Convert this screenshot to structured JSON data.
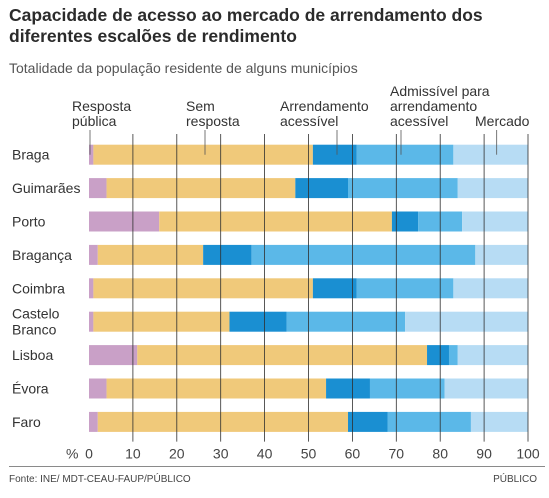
{
  "title": "Capacidade de acesso ao mercado de arrendamento dos diferentes escalões de rendimento",
  "subtitle": "Totalidade da população residente de alguns municípios",
  "footer": {
    "source": "Fonte: INE/ MDT-CEAU-FAUP/PÚBLICO",
    "publisher": "PÚBLICO"
  },
  "chart_data": {
    "type": "bar",
    "orientation": "horizontal",
    "stacked": true,
    "title": "Capacidade de acesso ao mercado de arrendamento dos diferentes escalões de rendimento",
    "subtitle": "Totalidade da população residente de alguns municípios",
    "xlabel": "%",
    "xlim": [
      0,
      100
    ],
    "x_ticks": [
      0,
      10,
      20,
      30,
      40,
      50,
      60,
      70,
      80,
      90,
      100
    ],
    "grid": true,
    "categories": [
      "Braga",
      "Guimarães",
      "Porto",
      "Bragança",
      "Coimbra",
      "Castelo Branco",
      "Lisboa",
      "Évora",
      "Faro"
    ],
    "category_lines": [
      [
        "Braga"
      ],
      [
        "Guimarães"
      ],
      [
        "Porto"
      ],
      [
        "Bragança"
      ],
      [
        "Coimbra"
      ],
      [
        "Castelo",
        "Branco"
      ],
      [
        "Lisboa"
      ],
      [
        "Évora"
      ],
      [
        "Faro"
      ]
    ],
    "series": [
      {
        "name": "Resposta pública",
        "name_lines": [
          "Resposta",
          "pública"
        ],
        "color": "#c9a0c7",
        "values": [
          1,
          4,
          16,
          2,
          1,
          1,
          11,
          4,
          2
        ]
      },
      {
        "name": "Sem resposta",
        "name_lines": [
          "Sem",
          "resposta"
        ],
        "color": "#f0c97a",
        "values": [
          50,
          43,
          53,
          24,
          50,
          31,
          66,
          50,
          57
        ]
      },
      {
        "name": "Arrendamento acessível",
        "name_lines": [
          "Arrendamento",
          "acessível"
        ],
        "color": "#1a8fd2",
        "values": [
          10,
          12,
          6,
          11,
          10,
          13,
          5,
          10,
          9
        ]
      },
      {
        "name": "Admissível para arrendamento acessível",
        "name_lines": [
          "Admissível para",
          "arrendamento",
          "acessível"
        ],
        "color": "#5bb8e8",
        "values": [
          22,
          25,
          10,
          51,
          22,
          27,
          2,
          17,
          19
        ]
      },
      {
        "name": "Mercado",
        "name_lines": [
          "Mercado"
        ],
        "color": "#b7dcf4",
        "values": [
          17,
          16,
          15,
          12,
          17,
          28,
          16,
          19,
          13
        ]
      }
    ]
  }
}
